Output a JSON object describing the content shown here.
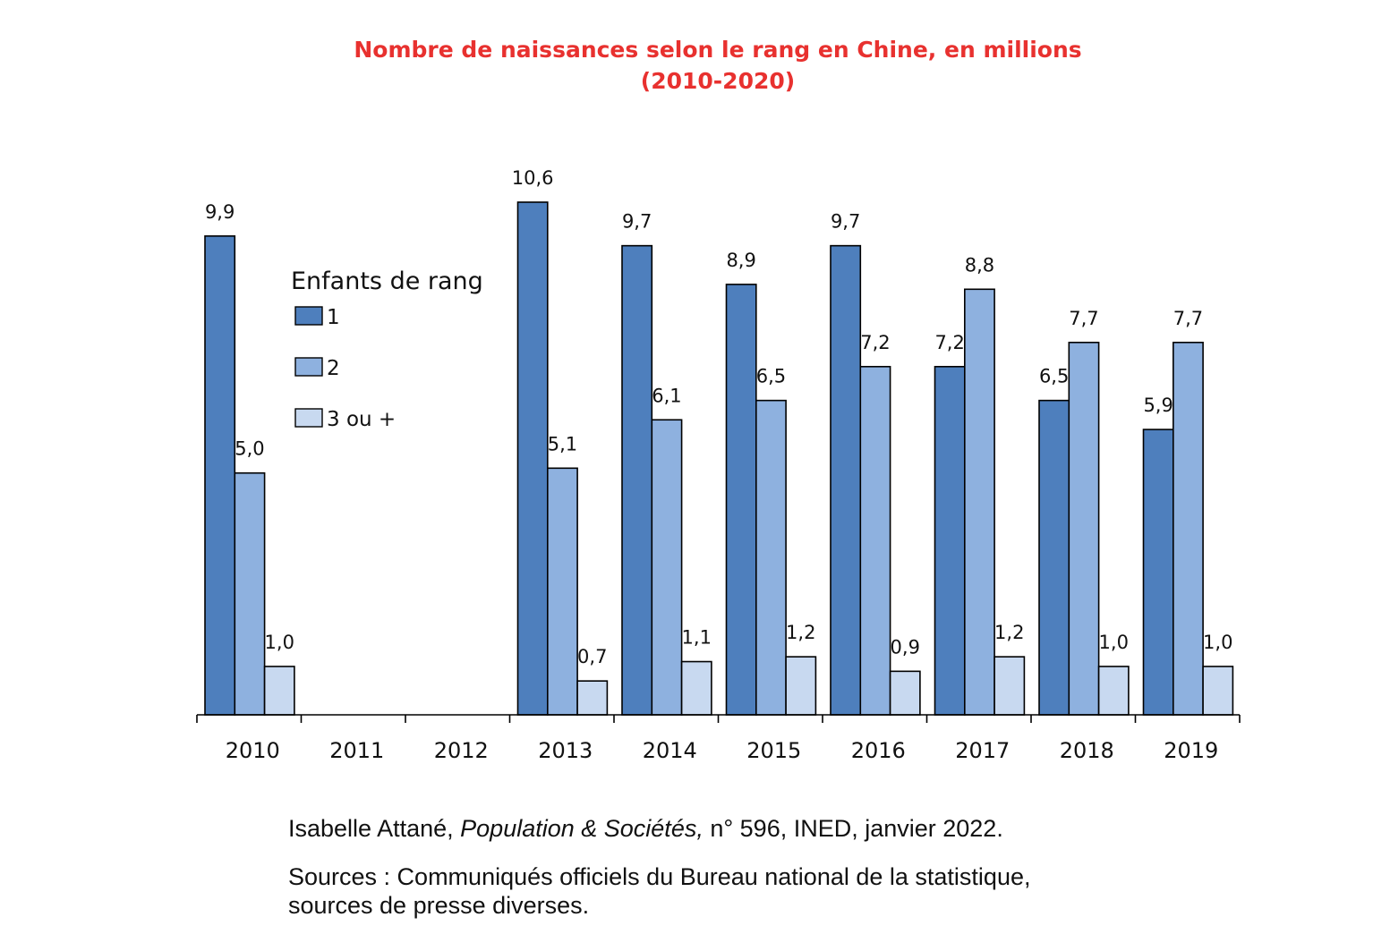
{
  "chart_data": {
    "type": "bar",
    "title": "Nombre de naissances selon le rang en Chine, en millions",
    "subtitle": "(2010-2020)",
    "xlabel": "",
    "ylabel": "",
    "ylim": [
      0,
      10.6
    ],
    "grid": false,
    "legend_title": "Enfants de rang",
    "legend_position": "top-left",
    "categories": [
      "2010",
      "2011",
      "2012",
      "2013",
      "2014",
      "2015",
      "2016",
      "2017",
      "2018",
      "2019"
    ],
    "series": [
      {
        "name": "1",
        "color": "#4e7fbd",
        "values": [
          9.9,
          null,
          null,
          10.6,
          9.7,
          8.9,
          9.7,
          7.2,
          6.5,
          5.9
        ],
        "labels": [
          "9,9",
          "",
          "",
          "10,6",
          "9,7",
          "8,9",
          "9,7",
          "7,2",
          "6,5",
          "5,9"
        ]
      },
      {
        "name": "2",
        "color": "#8eb1df",
        "values": [
          5.0,
          null,
          null,
          5.1,
          6.1,
          6.5,
          7.2,
          8.8,
          7.7,
          7.7
        ],
        "labels": [
          "5,0",
          "",
          "",
          "5,1",
          "6,1",
          "6,5",
          "7,2",
          "8,8",
          "7,7",
          "7,7"
        ]
      },
      {
        "name": "3 ou +",
        "color": "#c8d9f0",
        "values": [
          1.0,
          null,
          null,
          0.7,
          1.1,
          1.2,
          0.9,
          1.2,
          1.0,
          1.0
        ],
        "labels": [
          "1,0",
          "",
          "",
          "0,7",
          "1,1",
          "1,2",
          "0,9",
          "1,2",
          "1,0",
          "1,0"
        ]
      }
    ]
  },
  "footer": {
    "credit_author": "Isabelle Attané,",
    "credit_journal": "Population & Sociétés,",
    "credit_rest": " n° 596, INED, janvier 2022.",
    "sources_line1": "Sources : Communiqués officiels du Bureau national de la statistique,",
    "sources_line2": "sources de presse diverses."
  }
}
